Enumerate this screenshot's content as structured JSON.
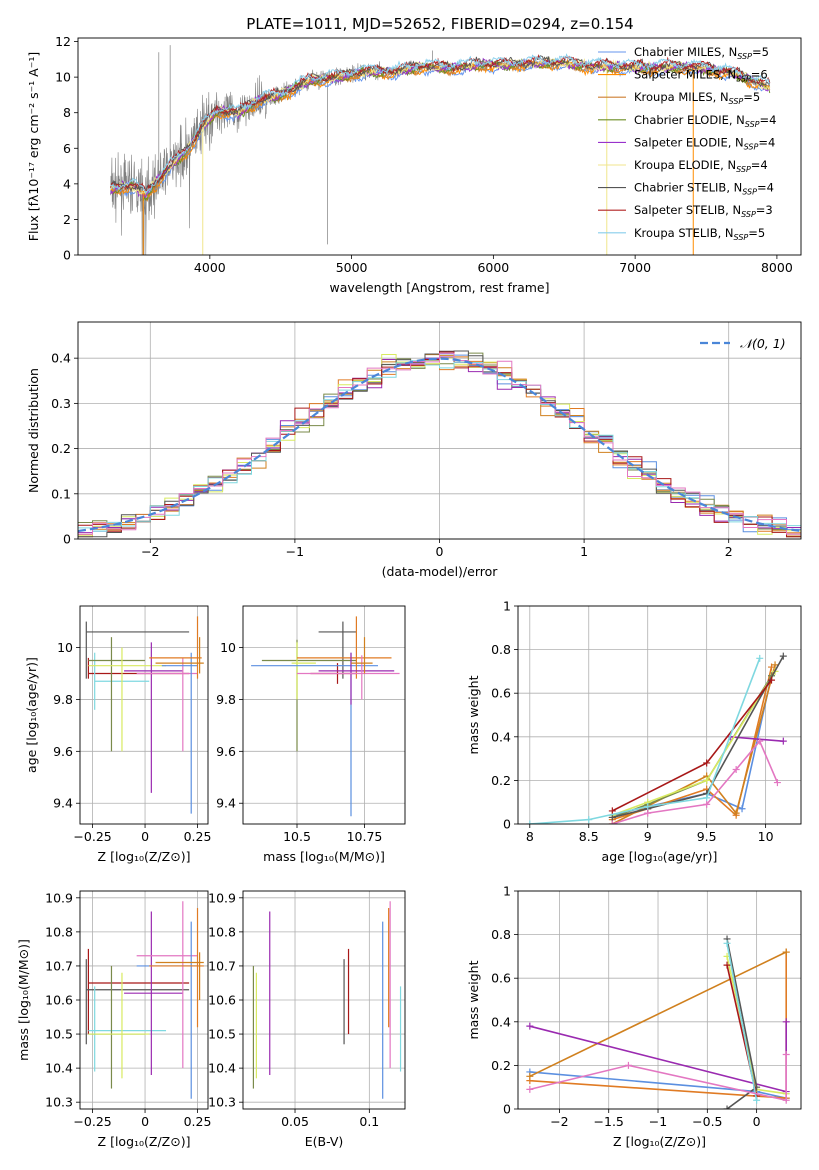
{
  "figure_title": "PLATE=1011, MJD=52652, FIBERID=0294, z=0.154",
  "colors": {
    "data": "#808080",
    "models": [
      "#6495ed",
      "#ff8c00",
      "#cd7f32",
      "#6b8e23",
      "#9932cc",
      "#f0e68c",
      "#555555",
      "#b22222",
      "#87ceeb"
    ],
    "models_fit": [
      "#5b8fe0",
      "#e07b24",
      "#d0801e",
      "#7a8a4a",
      "#9a2ab0",
      "#d8ea60",
      "#555555",
      "#a81818",
      "#7fd8e0"
    ],
    "pink": "#e377c2",
    "normal": "#4a86d8"
  },
  "chart_data": [
    {
      "id": "spectrum",
      "type": "line",
      "xlabel": "wavelength [Angstrom, rest frame]",
      "ylabel": "Flux [fλ10⁻¹⁷ erg cm⁻² s⁻¹ A⁻¹]",
      "xlim": [
        3070,
        8170
      ],
      "ylim": [
        0,
        12.2
      ],
      "xticks": [
        4000,
        5000,
        6000,
        7000,
        8000
      ],
      "yticks": [
        0,
        2,
        4,
        6,
        8,
        10,
        12
      ],
      "data_range": [
        3300,
        7950
      ],
      "legend": [
        {
          "label": "Chabrier MILES, N",
          "sub": "SSP",
          "tail": "=5"
        },
        {
          "label": "Salpeter MILES, N",
          "sub": "SSP",
          "tail": "=6"
        },
        {
          "label": "Kroupa MILES, N",
          "sub": "SSP",
          "tail": "=5"
        },
        {
          "label": "Chabrier ELODIE, N",
          "sub": "SSP",
          "tail": "=4"
        },
        {
          "label": "Salpeter ELODIE, N",
          "sub": "SSP",
          "tail": "=4"
        },
        {
          "label": "Kroupa ELODIE, N",
          "sub": "SSP",
          "tail": "=4"
        },
        {
          "label": "Chabrier STELIB, N",
          "sub": "SSP",
          "tail": "=4"
        },
        {
          "label": "Salpeter STELIB, N",
          "sub": "SSP",
          "tail": "=3"
        },
        {
          "label": "Kroupa STELIB, N",
          "sub": "SSP",
          "tail": "=5"
        }
      ],
      "legend_position": "upper right",
      "continuum": [
        [
          3300,
          3.7
        ],
        [
          3450,
          3.9
        ],
        [
          3550,
          3.4
        ],
        [
          3700,
          4.8
        ],
        [
          3850,
          6.0
        ],
        [
          3950,
          7.2
        ],
        [
          4050,
          8.1
        ],
        [
          4200,
          8.0
        ],
        [
          4350,
          8.7
        ],
        [
          4500,
          9.0
        ],
        [
          4700,
          9.8
        ],
        [
          4900,
          10.0
        ],
        [
          5100,
          10.3
        ],
        [
          5300,
          10.3
        ],
        [
          5500,
          10.6
        ],
        [
          5700,
          10.5
        ],
        [
          5900,
          10.7
        ],
        [
          6100,
          10.7
        ],
        [
          6300,
          10.8
        ],
        [
          6500,
          10.8
        ],
        [
          6700,
          10.6
        ],
        [
          6900,
          10.6
        ],
        [
          7100,
          10.5
        ],
        [
          7300,
          10.6
        ],
        [
          7500,
          10.5
        ],
        [
          7700,
          10.2
        ],
        [
          7950,
          9.4
        ]
      ]
    },
    {
      "id": "residuals",
      "type": "histogram",
      "xlabel": "(data-model)/error",
      "ylabel": "Normed distribution",
      "xlim": [
        -2.5,
        2.5
      ],
      "ylim": [
        0,
        0.48
      ],
      "xticks": [
        -2,
        -1,
        0,
        1,
        2
      ],
      "yticks": [
        0.0,
        0.1,
        0.2,
        0.3,
        0.4
      ],
      "grid": true,
      "bin_width": 0.1,
      "legend": [
        {
          "label": "𝒩(0, 1)"
        }
      ],
      "legend_position": "upper right"
    },
    {
      "id": "age_vs_Z",
      "type": "errorbar",
      "xlabel": "Z [log₁₀(Z/Z⊙)]",
      "ylabel": "age  [log₁₀(age/yr)]",
      "xlim": [
        -0.31,
        0.3
      ],
      "ylim": [
        9.32,
        10.16
      ],
      "xticks": [
        -0.25,
        0.0,
        0.25
      ],
      "yticks": [
        9.4,
        9.6,
        9.8,
        10.0
      ],
      "grid": true
    },
    {
      "id": "age_vs_mass",
      "type": "errorbar",
      "xlabel": "mass [log₁₀(M/M⊙)]",
      "ylabel": "",
      "xlim": [
        10.3,
        10.9
      ],
      "ylim": [
        9.32,
        10.16
      ],
      "xticks": [
        10.5,
        10.75
      ],
      "yticks": [
        9.4,
        9.6,
        9.8,
        10.0
      ],
      "grid": true
    },
    {
      "id": "mass_weight_vs_age",
      "type": "line",
      "xlabel": "age  [log₁₀(age/yr)]",
      "ylabel": "mass weight",
      "xlim": [
        7.9,
        10.3
      ],
      "ylim": [
        0,
        1.0
      ],
      "xticks": [
        8.0,
        8.5,
        9.0,
        9.5,
        10.0
      ],
      "yticks": [
        0.0,
        0.2,
        0.4,
        0.6,
        0.8,
        1.0
      ],
      "grid": true,
      "series": [
        {
          "c": 0,
          "pts": [
            [
              8.7,
              0.04
            ],
            [
              9.0,
              0.08
            ],
            [
              9.5,
              0.14
            ],
            [
              9.8,
              0.07
            ],
            [
              10.05,
              0.68
            ]
          ]
        },
        {
          "c": 1,
          "pts": [
            [
              8.7,
              0.02
            ],
            [
              9.0,
              0.07
            ],
            [
              9.5,
              0.16
            ],
            [
              9.75,
              0.04
            ],
            [
              10.05,
              0.72
            ]
          ]
        },
        {
          "c": 2,
          "pts": [
            [
              8.7,
              0.0
            ],
            [
              9.5,
              0.22
            ],
            [
              9.75,
              0.05
            ],
            [
              10.08,
              0.73
            ]
          ]
        },
        {
          "c": 3,
          "pts": [
            [
              8.7,
              0.03
            ],
            [
              9.0,
              0.09
            ],
            [
              9.5,
              0.2
            ],
            [
              10.05,
              0.68
            ]
          ]
        },
        {
          "c": 4,
          "pts": [
            [
              9.7,
              0.4
            ],
            [
              10.15,
              0.38
            ]
          ]
        },
        {
          "c": 5,
          "pts": [
            [
              8.7,
              0.04
            ],
            [
              9.0,
              0.1
            ],
            [
              9.5,
              0.2
            ],
            [
              10.08,
              0.7
            ]
          ]
        },
        {
          "c": 6,
          "pts": [
            [
              8.7,
              0.03
            ],
            [
              9.0,
              0.07
            ],
            [
              9.5,
              0.14
            ],
            [
              10.15,
              0.77
            ]
          ]
        },
        {
          "c": 7,
          "pts": [
            [
              8.7,
              0.06
            ],
            [
              9.5,
              0.28
            ],
            [
              10.05,
              0.66
            ]
          ]
        },
        {
          "c": 8,
          "pts": [
            [
              8.0,
              0.0
            ],
            [
              8.5,
              0.02
            ],
            [
              9.0,
              0.08
            ],
            [
              9.5,
              0.12
            ],
            [
              9.95,
              0.76
            ]
          ]
        },
        {
          "c": "pink",
          "pts": [
            [
              8.7,
              0.0
            ],
            [
              9.0,
              0.05
            ],
            [
              9.5,
              0.09
            ],
            [
              9.75,
              0.25
            ],
            [
              9.95,
              0.38
            ],
            [
              10.1,
              0.19
            ]
          ]
        }
      ]
    },
    {
      "id": "mass_vs_Z",
      "type": "errorbar",
      "xlabel": "Z [log₁₀(Z/Z⊙)]",
      "ylabel": "mass [log₁₀(M/M⊙)]",
      "xlim": [
        -0.31,
        0.3
      ],
      "ylim": [
        10.28,
        10.92
      ],
      "xticks": [
        -0.25,
        0.0,
        0.25
      ],
      "yticks": [
        10.3,
        10.4,
        10.5,
        10.6,
        10.7,
        10.8,
        10.9
      ],
      "grid": true
    },
    {
      "id": "mass_vs_EBV",
      "type": "errorbar",
      "xlabel": "E(B-V)",
      "ylabel": "",
      "xlim": [
        0.015,
        0.124
      ],
      "ylim": [
        10.28,
        10.92
      ],
      "xticks": [
        0.05,
        0.1
      ],
      "yticks": [
        10.3,
        10.4,
        10.5,
        10.6,
        10.7,
        10.8,
        10.9
      ],
      "grid": true,
      "bars": [
        {
          "c": 3,
          "x": 0.022,
          "lo": 10.34,
          "hi": 10.7
        },
        {
          "c": 5,
          "x": 0.024,
          "lo": 10.37,
          "hi": 10.68
        },
        {
          "c": 4,
          "x": 0.033,
          "lo": 10.38,
          "hi": 10.86
        },
        {
          "c": 6,
          "x": 0.083,
          "lo": 10.47,
          "hi": 10.72
        },
        {
          "c": 7,
          "x": 0.086,
          "lo": 10.5,
          "hi": 10.75
        },
        {
          "c": 0,
          "x": 0.109,
          "lo": 10.31,
          "hi": 10.83
        },
        {
          "c": 1,
          "x": 0.113,
          "lo": 10.52,
          "hi": 10.87
        },
        {
          "c": "pink",
          "x": 0.114,
          "lo": 10.4,
          "hi": 10.89
        },
        {
          "c": 8,
          "x": 0.121,
          "lo": 10.39,
          "hi": 10.64
        }
      ]
    },
    {
      "id": "mass_weight_vs_Z",
      "type": "line",
      "xlabel": "Z [log₁₀(Z/Z⊙)]",
      "ylabel": "mass weight",
      "xlim": [
        -2.42,
        0.45
      ],
      "ylim": [
        0,
        1.0
      ],
      "xticks": [
        -2.0,
        -1.5,
        -1.0,
        -0.5,
        0.0
      ],
      "yticks": [
        0.0,
        0.2,
        0.4,
        0.6,
        0.8,
        1.0
      ],
      "grid": true,
      "series": [
        {
          "c": 0,
          "pts": [
            [
              -2.3,
              0.17
            ],
            [
              0.0,
              0.08
            ],
            [
              0.3,
              0.05
            ]
          ]
        },
        {
          "c": 1,
          "pts": [
            [
              -2.3,
              0.13
            ],
            [
              0.3,
              0.05
            ],
            [
              0.3,
              0.72
            ]
          ]
        },
        {
          "c": 2,
          "pts": [
            [
              -2.3,
              0.15
            ],
            [
              0.3,
              0.72
            ]
          ]
        },
        {
          "c": 4,
          "pts": [
            [
              -2.3,
              0.38
            ],
            [
              0.3,
              0.08
            ],
            [
              0.3,
              0.4
            ]
          ]
        },
        {
          "c": 5,
          "pts": [
            [
              -0.3,
              0.7
            ],
            [
              0.0,
              0.09
            ],
            [
              0.3,
              0.07
            ]
          ]
        },
        {
          "c": 6,
          "pts": [
            [
              -0.3,
              0.78
            ],
            [
              0.0,
              0.1
            ],
            [
              -0.3,
              0.0
            ]
          ]
        },
        {
          "c": 7,
          "pts": [
            [
              -0.3,
              0.66
            ],
            [
              0.0,
              0.06
            ]
          ]
        },
        {
          "c": 8,
          "pts": [
            [
              -0.3,
              0.76
            ],
            [
              0.0,
              0.04
            ]
          ]
        },
        {
          "c": "pink",
          "pts": [
            [
              -2.3,
              0.09
            ],
            [
              -1.3,
              0.2
            ],
            [
              0.3,
              0.04
            ],
            [
              0.3,
              0.25
            ]
          ]
        }
      ]
    }
  ]
}
